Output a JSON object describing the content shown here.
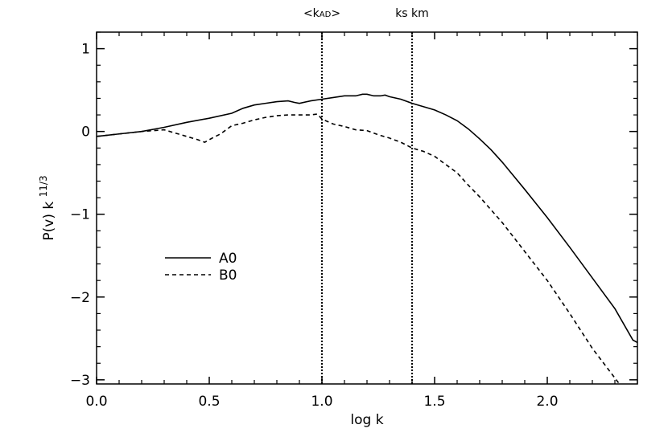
{
  "chart_data": {
    "type": "line",
    "xlabel": "log k",
    "ylabel": "P(v)  k",
    "ylabel_sup": "11/3",
    "xlim": [
      0.0,
      2.4
    ],
    "ylim": [
      -3.05,
      1.2
    ],
    "x_ticks": [
      0.0,
      0.5,
      1.0,
      1.5,
      2.0
    ],
    "x_tick_labels": [
      "0.0",
      "0.5",
      "1.0",
      "1.5",
      "2.0"
    ],
    "y_ticks": [
      1,
      0,
      -1,
      -2,
      -3
    ],
    "y_tick_labels": [
      "1",
      "0",
      "−1",
      "−2",
      "−3"
    ],
    "grid": false,
    "legend_position": "center-left",
    "vertical_lines": [
      {
        "x": 1.0,
        "label": "<k",
        "label_sub": "AD",
        "label_end": ">"
      },
      {
        "x": 1.4,
        "label": "ks km"
      }
    ],
    "series": [
      {
        "name": "A0",
        "style": "solid",
        "color": "#000000",
        "x": [
          0.0,
          0.1,
          0.2,
          0.3,
          0.4,
          0.5,
          0.6,
          0.65,
          0.7,
          0.75,
          0.8,
          0.85,
          0.88,
          0.9,
          0.95,
          1.0,
          1.05,
          1.1,
          1.15,
          1.18,
          1.2,
          1.23,
          1.26,
          1.28,
          1.3,
          1.35,
          1.4,
          1.45,
          1.5,
          1.55,
          1.6,
          1.65,
          1.7,
          1.75,
          1.8,
          1.9,
          2.0,
          2.1,
          2.2,
          2.3,
          2.38,
          2.4
        ],
        "y": [
          -0.06,
          -0.03,
          0.0,
          0.05,
          0.11,
          0.16,
          0.22,
          0.28,
          0.32,
          0.34,
          0.36,
          0.37,
          0.35,
          0.34,
          0.37,
          0.39,
          0.41,
          0.43,
          0.43,
          0.45,
          0.45,
          0.43,
          0.43,
          0.44,
          0.42,
          0.39,
          0.34,
          0.3,
          0.26,
          0.2,
          0.13,
          0.03,
          -0.09,
          -0.22,
          -0.37,
          -0.7,
          -1.04,
          -1.4,
          -1.77,
          -2.14,
          -2.52,
          -2.55
        ]
      },
      {
        "name": "B0",
        "style": "dashed",
        "color": "#000000",
        "x": [
          0.0,
          0.1,
          0.2,
          0.3,
          0.35,
          0.4,
          0.45,
          0.48,
          0.52,
          0.55,
          0.6,
          0.65,
          0.7,
          0.75,
          0.8,
          0.85,
          0.9,
          0.95,
          0.98,
          1.0,
          1.05,
          1.1,
          1.15,
          1.2,
          1.25,
          1.3,
          1.35,
          1.4,
          1.45,
          1.5,
          1.55,
          1.6,
          1.65,
          1.7,
          1.8,
          1.9,
          2.0,
          2.1,
          2.2,
          2.32
        ],
        "y": [
          -0.06,
          -0.03,
          0.0,
          0.02,
          -0.02,
          -0.06,
          -0.1,
          -0.13,
          -0.07,
          -0.03,
          0.07,
          0.1,
          0.14,
          0.17,
          0.19,
          0.2,
          0.2,
          0.2,
          0.21,
          0.15,
          0.09,
          0.06,
          0.02,
          0.01,
          -0.04,
          -0.08,
          -0.13,
          -0.2,
          -0.24,
          -0.3,
          -0.4,
          -0.5,
          -0.65,
          -0.79,
          -1.1,
          -1.45,
          -1.8,
          -2.2,
          -2.62,
          -3.05
        ]
      }
    ]
  }
}
